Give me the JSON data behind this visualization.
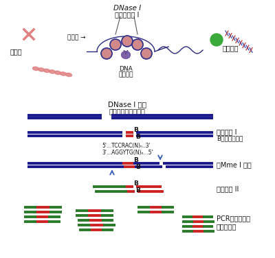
{
  "bg_color": "#ffffff",
  "colors": {
    "blue_line": "#1a1a8c",
    "red_segment": "#cc2222",
    "green_segment": "#2a7a2a",
    "arrow_blue": "#4466bb",
    "text_dark": "#111111",
    "pink_chrom": "#e08080",
    "gray_line": "#555555"
  },
  "top_text": {
    "dnase_title": "DNase I",
    "dnase_subtitle": "超敏感位点 I",
    "nucleosome": "核小体 →",
    "chromosome": "染色体",
    "dna": "DNA",
    "binding_protein": "结合蛋白",
    "gene_transcription": "基因转录"
  },
  "s2_text": {
    "line1": "DNase I 酶切",
    "line2": "超敏感位点形成切口"
  },
  "s3_text": {
    "right1": "连上接头 I",
    "right2": "B为生物素标记",
    "seq1": "5'...TCCRAC(N)ₙ..3'",
    "seq2": "3'...AGGYTG(N)ₙ...5'"
  },
  "s4_text": {
    "right1": "用Mme I 酶切"
  },
  "s5_text": {
    "right1": "连上接头 II"
  },
  "s6_text": {
    "right1": "PCR扩增、建库",
    "right2": "高能量测序"
  }
}
